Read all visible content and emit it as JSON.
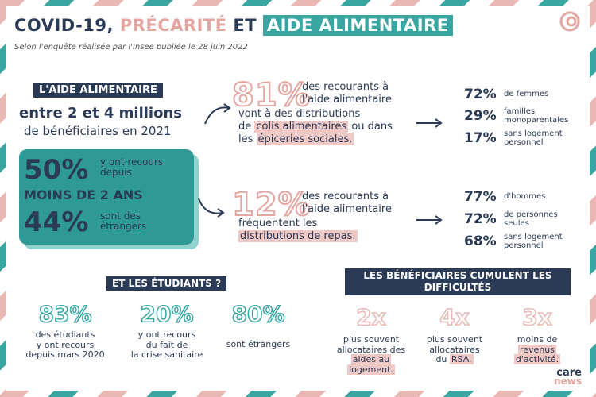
{
  "header": {
    "title_part1": "COVID-19,",
    "title_part2": "PRÉCARITÉ",
    "title_part3": "ET",
    "title_part4": "AIDE ALIMENTAIRE",
    "subtitle": "Selon l'enquête réalisée par l'Insee publiée le 28 juin 2022"
  },
  "aide": {
    "badge": "L'AIDE ALIMENTAIRE",
    "range_bold": "entre 2 et 4 millions",
    "range_rest": "de bénéficiaires en 2021",
    "box": {
      "pct1": "50%",
      "text1": "y ont recours depuis",
      "line2": "MOINS DE 2 ANS",
      "pct2": "44%",
      "text2": "sont des étrangers"
    }
  },
  "colis": {
    "pct": "81%",
    "t1": "des recourants à",
    "t2": "l'aide alimentaire",
    "t3": "vont à des distributions",
    "t4_pre": "de ",
    "t4_mark": "colis alimentaires",
    "t4_post": " ou dans",
    "t5_pre": "les ",
    "t5_mark": "épiceries sociales.",
    "stats": [
      {
        "pct": "72%",
        "label": "de femmes"
      },
      {
        "pct": "29%",
        "label": "familles monoparentales"
      },
      {
        "pct": "17%",
        "label": "sans logement personnel"
      }
    ]
  },
  "repas": {
    "pct": "12%",
    "t1": "des recourants à",
    "t2": "l'aide alimentaire",
    "t3": "fréquentent les",
    "t4_mark": "distributions de repas.",
    "stats": [
      {
        "pct": "77%",
        "label": "d'hommes"
      },
      {
        "pct": "72%",
        "label": "de personnes seules"
      },
      {
        "pct": "68%",
        "label": "sans logement personnel"
      }
    ]
  },
  "etudiants": {
    "badge": "ET LES ÉTUDIANTS ?",
    "items": [
      {
        "pct": "83%",
        "l1": "des étudiants",
        "l2": "y ont recours",
        "l3": "depuis mars 2020"
      },
      {
        "pct": "20%",
        "l1": "y ont recours",
        "l2": "du fait de",
        "l3": "la crise sanitaire"
      },
      {
        "pct": "80%",
        "l1": "sont étrangers",
        "l2": "",
        "l3": ""
      }
    ]
  },
  "difficultes": {
    "badge_l1": "LES BÉNÉFICIAIRES CUMULENT LES",
    "badge_l2": "DIFFICULTÉS",
    "items": [
      {
        "mult": "2x",
        "l1": "plus souvent",
        "l2": "allocataires des",
        "m1": "aides au",
        "m2": "logement."
      },
      {
        "mult": "4x",
        "l1": "plus souvent",
        "l2": "allocataires",
        "l3": "du ",
        "m1": "RSA."
      },
      {
        "mult": "3x",
        "l1": "moins de",
        "m1": "revenus",
        "m2": "d'activité."
      }
    ]
  },
  "footer": {
    "logo1": "care",
    "logo2": "news"
  }
}
